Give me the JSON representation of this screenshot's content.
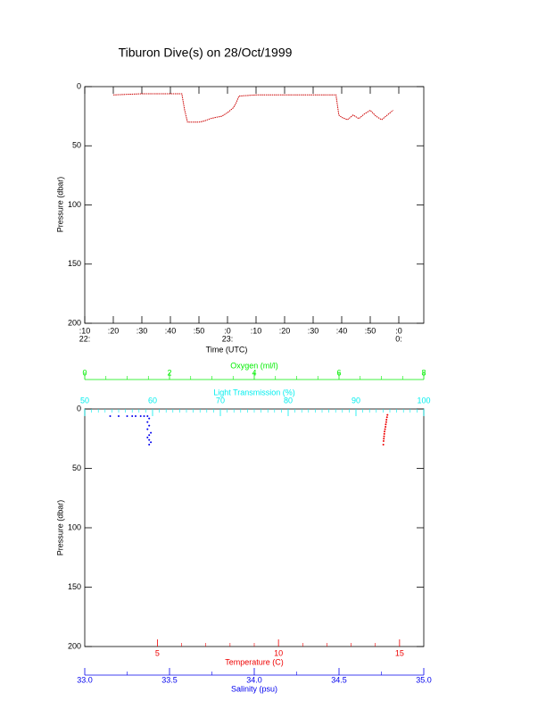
{
  "chart_data": [
    {
      "type": "line",
      "title": "Tiburon Dive(s) on 28/Oct/1999",
      "xlabel": "Time (UTC)",
      "ylabel": "Pressure (dbar)",
      "color": "#cc0000",
      "xlim": [
        10,
        128.75
      ],
      "xticks": [
        {
          "value": 10,
          "label": ":10",
          "date": "22:"
        },
        {
          "value": 20,
          "label": ":20"
        },
        {
          "value": 30,
          "label": ":30"
        },
        {
          "value": 40,
          "label": ":40"
        },
        {
          "value": 50,
          "label": ":50"
        },
        {
          "value": 60,
          "label": ":0",
          "date": "23:"
        },
        {
          "value": 70,
          "label": ":10"
        },
        {
          "value": 80,
          "label": ":20"
        },
        {
          "value": 90,
          "label": ":30"
        },
        {
          "value": 100,
          "label": ":40"
        },
        {
          "value": 110,
          "label": ":50"
        },
        {
          "value": 120,
          "label": ":0",
          "date": "0:"
        }
      ],
      "ylim": [
        0,
        200
      ],
      "yticks": [
        0,
        50,
        100,
        150,
        200
      ],
      "y_reversed": true,
      "x": [
        20,
        30,
        40,
        44,
        45,
        46,
        48,
        50,
        52,
        54,
        56,
        58,
        60,
        62,
        63,
        64,
        70,
        80,
        90,
        98,
        99,
        100,
        102,
        104,
        106,
        108,
        110,
        112,
        114,
        116,
        118
      ],
      "values": [
        7,
        6,
        6,
        6,
        20,
        30,
        30,
        30,
        29,
        27,
        26,
        25,
        22,
        18,
        14,
        8,
        7,
        7,
        7,
        7,
        24,
        26,
        28,
        24,
        27,
        23,
        20,
        25,
        28,
        24,
        20
      ]
    },
    {
      "type": "scatter",
      "ylabel": "Pressure (dbar)",
      "ylim": [
        0,
        200
      ],
      "yticks": [
        0,
        50,
        100,
        150,
        200
      ],
      "y_reversed": true,
      "xaxes": [
        {
          "label": "Oxygen (ml/l)",
          "color": "#00ee00",
          "xlim": [
            0,
            8
          ],
          "xticks": [
            0,
            2,
            4,
            6,
            8
          ]
        },
        {
          "label": "Light Transmission (%)",
          "color": "#00eeee",
          "xlim": [
            50,
            100
          ],
          "xticks": [
            50,
            60,
            70,
            80,
            90,
            100
          ]
        },
        {
          "label": "Temperature (C)",
          "color": "#ee0000",
          "xlim": [
            2,
            16
          ],
          "xticks": [
            5,
            10,
            15
          ]
        },
        {
          "label": "Salinity (psu)",
          "color": "#0000ee",
          "xlim": [
            33,
            35
          ],
          "xticks": [
            {
              "value": 33,
              "label": "33.0"
            },
            {
              "value": 33.5,
              "label": "33.5"
            },
            {
              "value": 34,
              "label": "34.0"
            },
            {
              "value": 34.5,
              "label": "34.5"
            },
            {
              "value": 35,
              "label": "35.0"
            }
          ]
        }
      ],
      "series": [
        {
          "axis": 3,
          "x": [
            33.15,
            33.2,
            33.25,
            33.28,
            33.3,
            33.33,
            33.35,
            33.37,
            33.38,
            33.37,
            33.38,
            33.37,
            33.39,
            33.38,
            33.37,
            33.38,
            33.39,
            33.38
          ],
          "values": [
            6,
            6,
            6,
            6,
            6,
            6,
            6,
            6,
            8,
            11,
            14,
            17,
            20,
            22,
            24,
            26,
            28,
            30
          ]
        },
        {
          "axis": 2,
          "x": [
            14.5,
            14.48,
            14.46,
            14.45,
            14.43,
            14.42,
            14.4,
            14.38,
            14.37,
            14.36,
            14.35,
            14.34,
            14.33
          ],
          "values": [
            5,
            7,
            9,
            11,
            13,
            15,
            17,
            19,
            21,
            23,
            25,
            27,
            30
          ]
        }
      ]
    }
  ]
}
